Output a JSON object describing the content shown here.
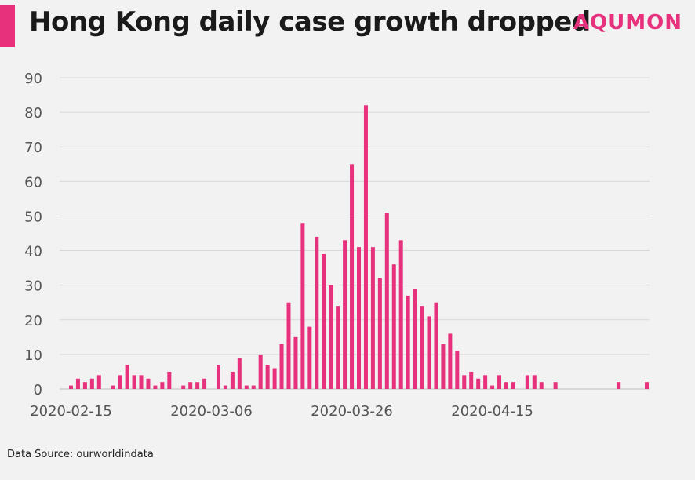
{
  "header": {
    "title": "Hong Kong daily case growth dropped",
    "brand": "AQUMON"
  },
  "footer": {
    "source": "Data Source: ourworldindata"
  },
  "colors": {
    "accent": "#e8317c",
    "bar": "#e8317c",
    "grid": "#d8d8d8",
    "background": "#f2f2f3"
  },
  "chart_data": {
    "type": "bar",
    "title": "Hong Kong daily case growth dropped",
    "xlabel": "",
    "ylabel": "",
    "ylim": [
      0,
      90
    ],
    "yticks": [
      0,
      10,
      20,
      30,
      40,
      50,
      60,
      70,
      80,
      90
    ],
    "grid": true,
    "xticks": [
      "2020-02-15",
      "2020-03-06",
      "2020-03-26",
      "2020-04-15"
    ],
    "categories": [
      "2020-02-15",
      "2020-02-16",
      "2020-02-17",
      "2020-02-18",
      "2020-02-19",
      "2020-02-20",
      "2020-02-21",
      "2020-02-22",
      "2020-02-23",
      "2020-02-24",
      "2020-02-25",
      "2020-02-26",
      "2020-02-27",
      "2020-02-28",
      "2020-02-29",
      "2020-03-01",
      "2020-03-02",
      "2020-03-03",
      "2020-03-04",
      "2020-03-05",
      "2020-03-06",
      "2020-03-07",
      "2020-03-08",
      "2020-03-09",
      "2020-03-10",
      "2020-03-11",
      "2020-03-12",
      "2020-03-13",
      "2020-03-14",
      "2020-03-15",
      "2020-03-16",
      "2020-03-17",
      "2020-03-18",
      "2020-03-19",
      "2020-03-20",
      "2020-03-21",
      "2020-03-22",
      "2020-03-23",
      "2020-03-24",
      "2020-03-25",
      "2020-03-26",
      "2020-03-27",
      "2020-03-28",
      "2020-03-29",
      "2020-03-30",
      "2020-03-31",
      "2020-04-01",
      "2020-04-02",
      "2020-04-03",
      "2020-04-04",
      "2020-04-05",
      "2020-04-06",
      "2020-04-07",
      "2020-04-08",
      "2020-04-09",
      "2020-04-10",
      "2020-04-11",
      "2020-04-12",
      "2020-04-13",
      "2020-04-14",
      "2020-04-15",
      "2020-04-16",
      "2020-04-17",
      "2020-04-18",
      "2020-04-19",
      "2020-04-20",
      "2020-04-21",
      "2020-04-22",
      "2020-04-23",
      "2020-04-24",
      "2020-04-25",
      "2020-04-26",
      "2020-04-27",
      "2020-04-28",
      "2020-04-29",
      "2020-04-30",
      "2020-05-01",
      "2020-05-02",
      "2020-05-03",
      "2020-05-04",
      "2020-05-05",
      "2020-05-06",
      "2020-05-07"
    ],
    "values": [
      1,
      3,
      2,
      3,
      4,
      0,
      1,
      4,
      7,
      4,
      4,
      3,
      1,
      2,
      5,
      0,
      1,
      2,
      2,
      3,
      0,
      7,
      1,
      5,
      9,
      1,
      1,
      10,
      7,
      6,
      13,
      25,
      15,
      48,
      18,
      44,
      39,
      30,
      24,
      43,
      65,
      41,
      82,
      41,
      32,
      51,
      36,
      43,
      27,
      29,
      24,
      21,
      25,
      13,
      16,
      11,
      4,
      5,
      3,
      4,
      1,
      4,
      2,
      2,
      0,
      4,
      4,
      2,
      0,
      2,
      0,
      0,
      0,
      0,
      0,
      0,
      0,
      0,
      2,
      0,
      0,
      0,
      2
    ]
  }
}
